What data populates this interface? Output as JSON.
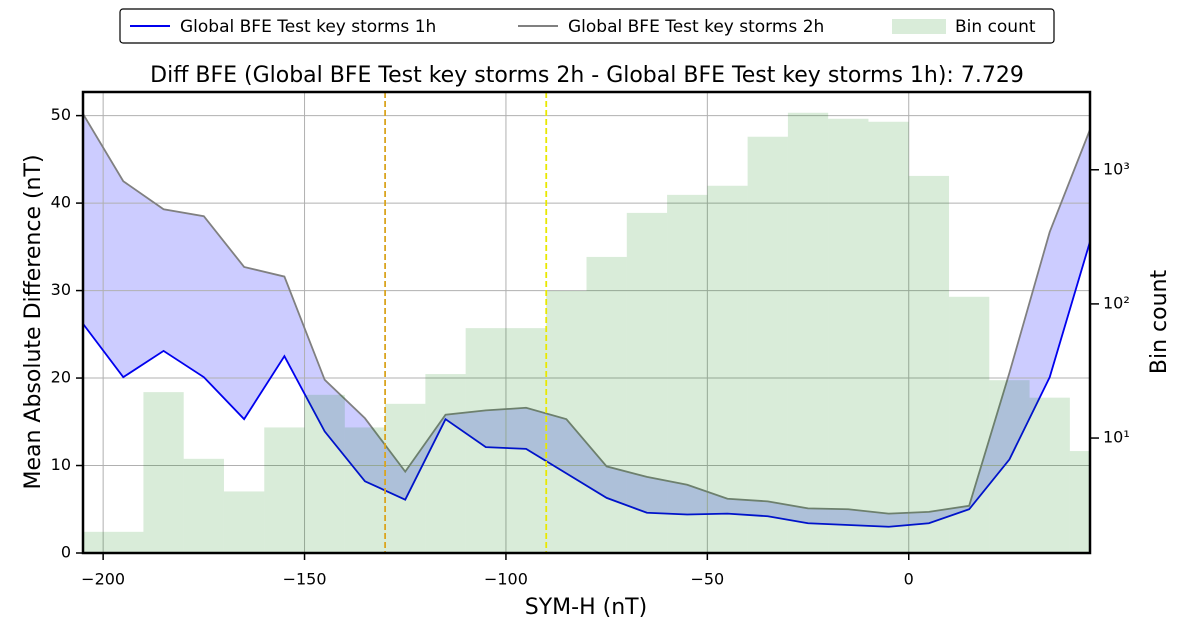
{
  "chart_data": {
    "type": "line",
    "title": "Diff BFE (Global BFE Test key storms 2h - Global BFE Test key storms 1h): 7.729",
    "xlabel": "SYM-H (nT)",
    "ylabel": "Mean Absolute Difference (nT)",
    "y2label": "Bin count",
    "x": [
      -205,
      -195,
      -185,
      -175,
      -165,
      -155,
      -145,
      -135,
      -125,
      -115,
      -105,
      -95,
      -85,
      -75,
      -65,
      -55,
      -45,
      -35,
      -25,
      -15,
      -5,
      5,
      15,
      25,
      35,
      45
    ],
    "series": [
      {
        "name": "Global BFE Test key storms 1h",
        "color": "#0000ee",
        "values": [
          26.2,
          20.1,
          23.1,
          20.1,
          15.3,
          22.5,
          13.9,
          8.2,
          6.1,
          15.3,
          12.1,
          11.9,
          9.1,
          6.3,
          4.6,
          4.4,
          4.5,
          4.2,
          3.4,
          3.2,
          3.0,
          3.4,
          5.0,
          10.7,
          20.1,
          35.6
        ]
      },
      {
        "name": "Global BFE Test key storms 2h",
        "color": "#808080",
        "values": [
          50.2,
          42.5,
          39.3,
          38.5,
          32.7,
          31.6,
          19.8,
          15.4,
          9.3,
          15.8,
          16.3,
          16.6,
          15.3,
          9.9,
          8.7,
          7.8,
          6.2,
          5.9,
          5.1,
          5.0,
          4.5,
          4.7,
          5.4,
          20.6,
          36.7,
          48.4
        ]
      }
    ],
    "fill_color": "#0000ff",
    "histogram": {
      "name": "Bin count",
      "axis": "y2",
      "color": "#008000",
      "bins": [
        -205,
        -190,
        -180,
        -170,
        -160,
        -150,
        -140,
        -130,
        -120,
        -110,
        -100,
        -90,
        -80,
        -70,
        -60,
        -50,
        -40,
        -30,
        -20,
        -10,
        0,
        10,
        20,
        30,
        40,
        45
      ],
      "counts": [
        2,
        22,
        7,
        4,
        12,
        21,
        12,
        18,
        30,
        66,
        66,
        125,
        224,
        477,
        650,
        760,
        1763,
        2660,
        2400,
        2280,
        900,
        113,
        27,
        20,
        8
      ]
    },
    "vlines": [
      {
        "x": -130,
        "color": "#daa520"
      },
      {
        "x": -90,
        "color": "#e8e800"
      }
    ],
    "xlim": [
      -205,
      45
    ],
    "xticks": [
      {
        "value": -200,
        "label": "−200"
      },
      {
        "value": -150,
        "label": "−150"
      },
      {
        "value": -100,
        "label": "−100"
      },
      {
        "value": -50,
        "label": "−50"
      },
      0
    ],
    "ylim": [
      0,
      52.7
    ],
    "yticks": [
      0,
      10,
      20,
      30,
      40,
      50
    ],
    "y2lim": [
      1.39,
      3800
    ],
    "y2ticks": [
      {
        "value": 10,
        "label": "10¹"
      },
      {
        "value": 100,
        "label": "10²"
      },
      {
        "value": 1000,
        "label": "10³"
      }
    ],
    "y2scale": "log",
    "grid": true,
    "legend": "top"
  }
}
